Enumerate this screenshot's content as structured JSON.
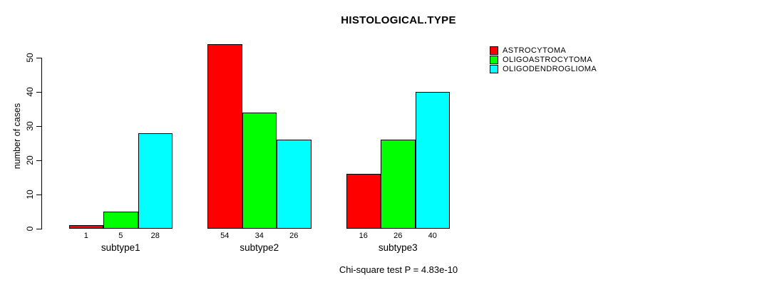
{
  "chart_data": {
    "type": "bar",
    "title": "HISTOLOGICAL.TYPE",
    "xlabel": "",
    "ylabel": "number of cases",
    "ylim": [
      0,
      50
    ],
    "yticks": [
      0,
      10,
      20,
      30,
      40,
      50
    ],
    "grid": false,
    "legend_position": "top-right",
    "categories": [
      "subtype1",
      "subtype2",
      "subtype3"
    ],
    "series": [
      {
        "name": "ASTROCYTOMA",
        "color": "#ff0000",
        "values": [
          1,
          54,
          16
        ]
      },
      {
        "name": "OLIGOASTROCYTOMA",
        "color": "#00ff00",
        "values": [
          5,
          34,
          26
        ]
      },
      {
        "name": "OLIGODENDROGLIOMA",
        "color": "#00ffff",
        "values": [
          28,
          26,
          40
        ]
      }
    ],
    "bar_value_labels_shown": true,
    "annotation": "Chi-square test P = 4.83e-10"
  }
}
